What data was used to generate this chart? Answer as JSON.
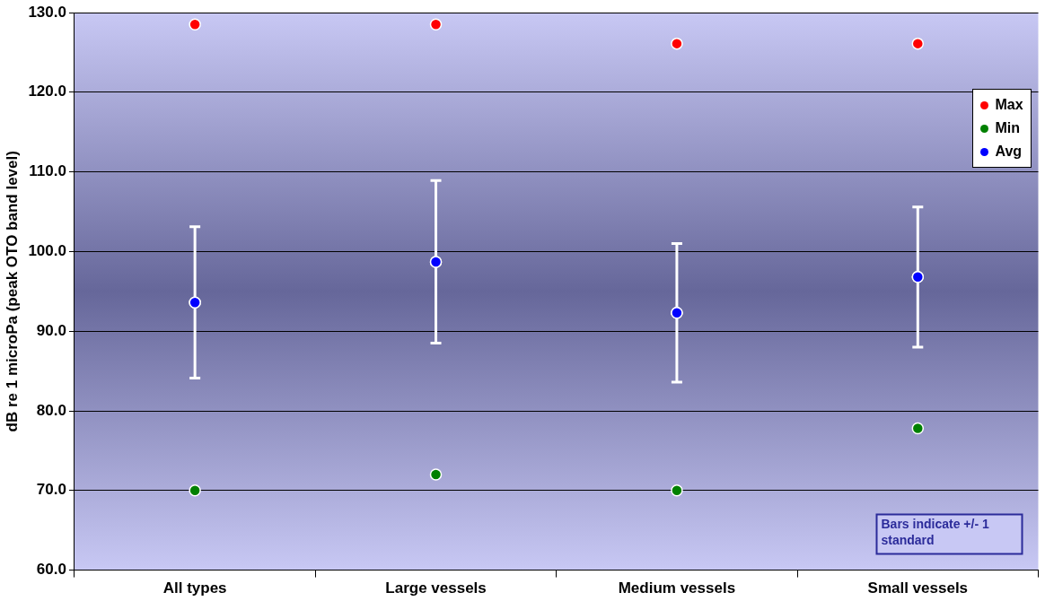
{
  "chart_data": {
    "type": "scatter",
    "ylabel": "dB re 1 microPa (peak OTO band level)",
    "categories": [
      "All types",
      "Large vessels",
      "Medium vessels",
      "Small vessels"
    ],
    "series": [
      {
        "name": "Max",
        "color": "#ff0000",
        "x": [
          "All types",
          "Large vessels",
          "Medium vessels",
          "Small vessels"
        ],
        "values": [
          128.5,
          128.5,
          126.1,
          126.1
        ]
      },
      {
        "name": "Min",
        "color": "#008000",
        "x": [
          "All types",
          "Large vessels",
          "Medium vessels",
          "Small vessels"
        ],
        "values": [
          70.0,
          72.0,
          70.0,
          77.8
        ]
      },
      {
        "name": "Avg",
        "color": "#0000ff",
        "x": [
          "All types",
          "Large vessels",
          "Medium vessels",
          "Small vessels"
        ],
        "values": [
          93.6,
          98.7,
          92.3,
          96.8
        ],
        "errors": [
          9.5,
          10.2,
          8.7,
          8.8
        ]
      }
    ],
    "ylim": [
      60,
      130
    ],
    "yticks": [
      {
        "value": 60,
        "label": "60.0"
      },
      {
        "value": 70,
        "label": "70.0"
      },
      {
        "value": 80,
        "label": "80.0"
      },
      {
        "value": 90,
        "label": "90.0"
      },
      {
        "value": 100,
        "label": "100.0"
      },
      {
        "value": 110,
        "label": "110.0"
      },
      {
        "value": 120,
        "label": "120.0"
      },
      {
        "value": 130,
        "label": "130.0"
      }
    ],
    "grid": "y",
    "legend": "top right",
    "marker": "circle",
    "annotations": [
      "Bars indicate +/- 1 standard"
    ]
  }
}
